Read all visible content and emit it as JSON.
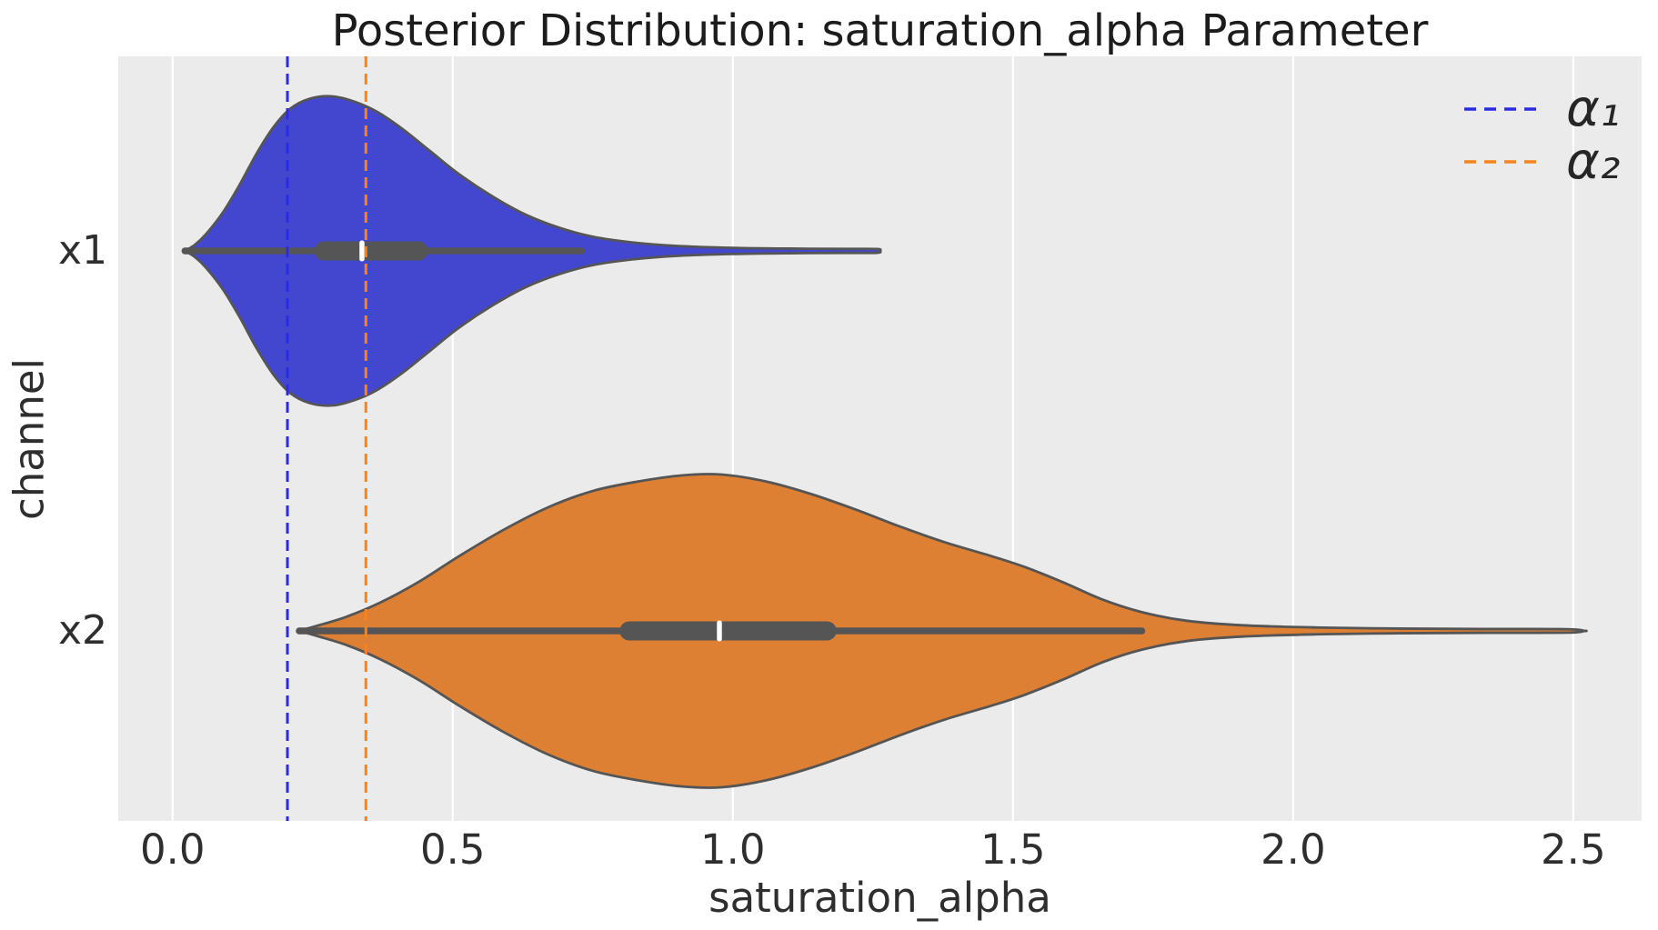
{
  "chart_data": {
    "type": "violin",
    "orientation": "horizontal",
    "title": "Posterior Distribution: saturation_alpha Parameter",
    "xlabel": "saturation_alpha",
    "ylabel": "channel",
    "categories": [
      "x1",
      "x2"
    ],
    "xlim": [
      -0.097,
      2.622
    ],
    "x_ticks": [
      0.0,
      0.5,
      1.0,
      1.5,
      2.0,
      2.5
    ],
    "x_tick_labels": [
      "0.0",
      "0.5",
      "1.0",
      "1.5",
      "2.0",
      "2.5"
    ],
    "grid": {
      "axis": "x",
      "color": "#ffffff"
    },
    "background": "#ebebeb",
    "violin_edge_color": "#555555",
    "inner_box_color": "#555555",
    "median_color": "#ffffff",
    "series": [
      {
        "name": "x1",
        "fill": "#4347d0",
        "stats": {
          "min": 0.022,
          "q1": 0.253,
          "median": 0.338,
          "q3": 0.456,
          "whisker_low": 0.022,
          "whisker_high": 0.73,
          "max": 1.26
        },
        "profile": [
          [
            0.022,
            0
          ],
          [
            0.04,
            0.04
          ],
          [
            0.06,
            0.11
          ],
          [
            0.09,
            0.25
          ],
          [
            0.12,
            0.43
          ],
          [
            0.15,
            0.63
          ],
          [
            0.18,
            0.8
          ],
          [
            0.21,
            0.92
          ],
          [
            0.245,
            0.985
          ],
          [
            0.285,
            1.0
          ],
          [
            0.325,
            0.965
          ],
          [
            0.365,
            0.9
          ],
          [
            0.41,
            0.79
          ],
          [
            0.46,
            0.645
          ],
          [
            0.51,
            0.5
          ],
          [
            0.57,
            0.355
          ],
          [
            0.63,
            0.235
          ],
          [
            0.69,
            0.15
          ],
          [
            0.75,
            0.092
          ],
          [
            0.82,
            0.055
          ],
          [
            0.9,
            0.032
          ],
          [
            1.0,
            0.02
          ],
          [
            1.1,
            0.015
          ],
          [
            1.2,
            0.013
          ],
          [
            1.258,
            0.012
          ],
          [
            1.262,
            0
          ]
        ]
      },
      {
        "name": "x2",
        "fill": "#de8033",
        "stats": {
          "min": 0.226,
          "q1": 0.798,
          "median": 0.976,
          "q3": 1.185,
          "whisker_low": 0.226,
          "whisker_high": 1.73,
          "max": 2.52
        },
        "profile": [
          [
            0.226,
            0
          ],
          [
            0.26,
            0.035
          ],
          [
            0.31,
            0.09
          ],
          [
            0.37,
            0.18
          ],
          [
            0.44,
            0.315
          ],
          [
            0.51,
            0.475
          ],
          [
            0.59,
            0.645
          ],
          [
            0.67,
            0.79
          ],
          [
            0.75,
            0.895
          ],
          [
            0.83,
            0.955
          ],
          [
            0.91,
            0.995
          ],
          [
            0.98,
            1.0
          ],
          [
            1.06,
            0.955
          ],
          [
            1.14,
            0.875
          ],
          [
            1.22,
            0.775
          ],
          [
            1.3,
            0.665
          ],
          [
            1.38,
            0.565
          ],
          [
            1.46,
            0.48
          ],
          [
            1.52,
            0.41
          ],
          [
            1.59,
            0.31
          ],
          [
            1.66,
            0.2
          ],
          [
            1.73,
            0.12
          ],
          [
            1.81,
            0.065
          ],
          [
            1.91,
            0.036
          ],
          [
            2.04,
            0.022
          ],
          [
            2.19,
            0.015
          ],
          [
            2.34,
            0.012
          ],
          [
            2.49,
            0.011
          ],
          [
            2.52,
            0
          ]
        ]
      }
    ],
    "ref_lines": [
      {
        "label": "α₁",
        "value": 0.205,
        "color": "#2b2be4",
        "style": "dashed"
      },
      {
        "label": "α₂",
        "value": 0.345,
        "color": "#f8821c",
        "style": "dashed"
      }
    ],
    "legend": {
      "position": "upper-right",
      "entries": [
        {
          "label": "α₁",
          "color": "#2b2be4",
          "style": "dashed"
        },
        {
          "label": "α₂",
          "color": "#f8821c",
          "style": "dashed"
        }
      ]
    }
  }
}
